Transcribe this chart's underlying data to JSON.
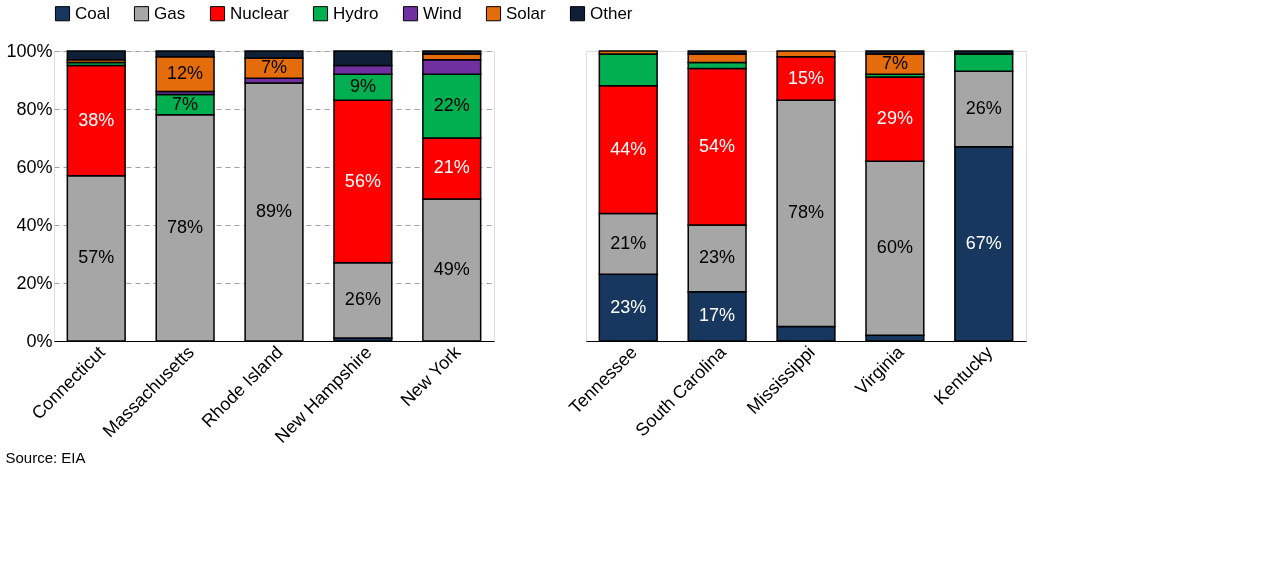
{
  "chart_data": [
    {
      "type": "bar",
      "stacked": true,
      "legend": "top",
      "grid": "y",
      "categories": [
        "Connecticut",
        "Massachusetts",
        "Rhode Island",
        "New Hampshire",
        "New York"
      ],
      "ylim": [
        0,
        100
      ],
      "yticks": [
        {
          "value": 0,
          "label": "0%"
        },
        {
          "value": 20,
          "label": "20%"
        },
        {
          "value": 40,
          "label": "40%"
        },
        {
          "value": 60,
          "label": "60%"
        },
        {
          "value": 80,
          "label": "80%"
        },
        {
          "value": 100,
          "label": "100%"
        }
      ],
      "series": [
        {
          "name": "Coal",
          "color": "#17375e",
          "values": [
            0,
            0,
            0,
            1,
            0
          ],
          "value_labels": [
            null,
            null,
            null,
            null,
            null
          ]
        },
        {
          "name": "Gas",
          "color": "#a6a6a6",
          "values": [
            57,
            78,
            89,
            26,
            49
          ],
          "value_labels": [
            "57%",
            "78%",
            "89%",
            "26%",
            "49%"
          ]
        },
        {
          "name": "Nuclear",
          "color": "#ff0000",
          "values": [
            38,
            0,
            0,
            56,
            21
          ],
          "value_labels": [
            "38%",
            null,
            null,
            "56%",
            "21%"
          ]
        },
        {
          "name": "Hydro",
          "color": "#00b050",
          "values": [
            1,
            7,
            0,
            9,
            22
          ],
          "value_labels": [
            null,
            "7%",
            null,
            "9%",
            "22%"
          ]
        },
        {
          "name": "Wind",
          "color": "#7030a0",
          "values": [
            0,
            1,
            1.6,
            3,
            5
          ],
          "value_labels": [
            null,
            null,
            null,
            null,
            null
          ]
        },
        {
          "name": "Solar",
          "color": "#e46c0a",
          "values": [
            1,
            12,
            7,
            0,
            2
          ],
          "value_labels": [
            null,
            "12%",
            "7%",
            null,
            null
          ]
        },
        {
          "name": "Other",
          "color": "#0f1f38",
          "values": [
            3,
            2,
            2.4,
            5,
            1
          ],
          "value_labels": [
            null,
            null,
            null,
            null,
            null
          ]
        }
      ],
      "annotations": [
        "Source: EIA"
      ]
    },
    {
      "type": "bar",
      "stacked": true,
      "legend": "top",
      "grid": "y",
      "tick_labels": "x",
      "categories": [
        "Tennessee",
        "South Carolina",
        "Mississippi",
        "Virginia",
        "Kentucky"
      ],
      "ylim": [
        0,
        100
      ],
      "series": [
        {
          "name": "Coal",
          "color": "#17375e",
          "values": [
            23,
            17,
            5,
            2,
            67
          ],
          "value_labels": [
            "23%",
            "17%",
            null,
            null,
            "67%"
          ]
        },
        {
          "name": "Gas",
          "color": "#a6a6a6",
          "values": [
            21,
            23,
            78,
            60,
            26
          ],
          "value_labels": [
            "21%",
            "23%",
            "78%",
            "60%",
            "26%"
          ]
        },
        {
          "name": "Nuclear",
          "color": "#ff0000",
          "values": [
            44,
            54,
            15,
            29,
            0
          ],
          "value_labels": [
            "44%",
            "54%",
            "15%",
            "29%",
            null
          ]
        },
        {
          "name": "Hydro",
          "color": "#00b050",
          "values": [
            11,
            2,
            0,
            1,
            6
          ],
          "value_labels": [
            null,
            null,
            null,
            null,
            null
          ]
        },
        {
          "name": "Wind",
          "color": "#7030a0",
          "values": [
            0,
            0,
            0,
            0,
            0
          ],
          "value_labels": [
            null,
            null,
            null,
            null,
            null
          ]
        },
        {
          "name": "Solar",
          "color": "#e46c0a",
          "values": [
            1,
            3,
            2,
            7,
            0
          ],
          "value_labels": [
            null,
            null,
            null,
            "7%",
            null
          ]
        },
        {
          "name": "Other",
          "color": "#0f1f38",
          "values": [
            0,
            1,
            0,
            1,
            1
          ],
          "value_labels": [
            null,
            null,
            null,
            null,
            null
          ]
        }
      ]
    }
  ]
}
